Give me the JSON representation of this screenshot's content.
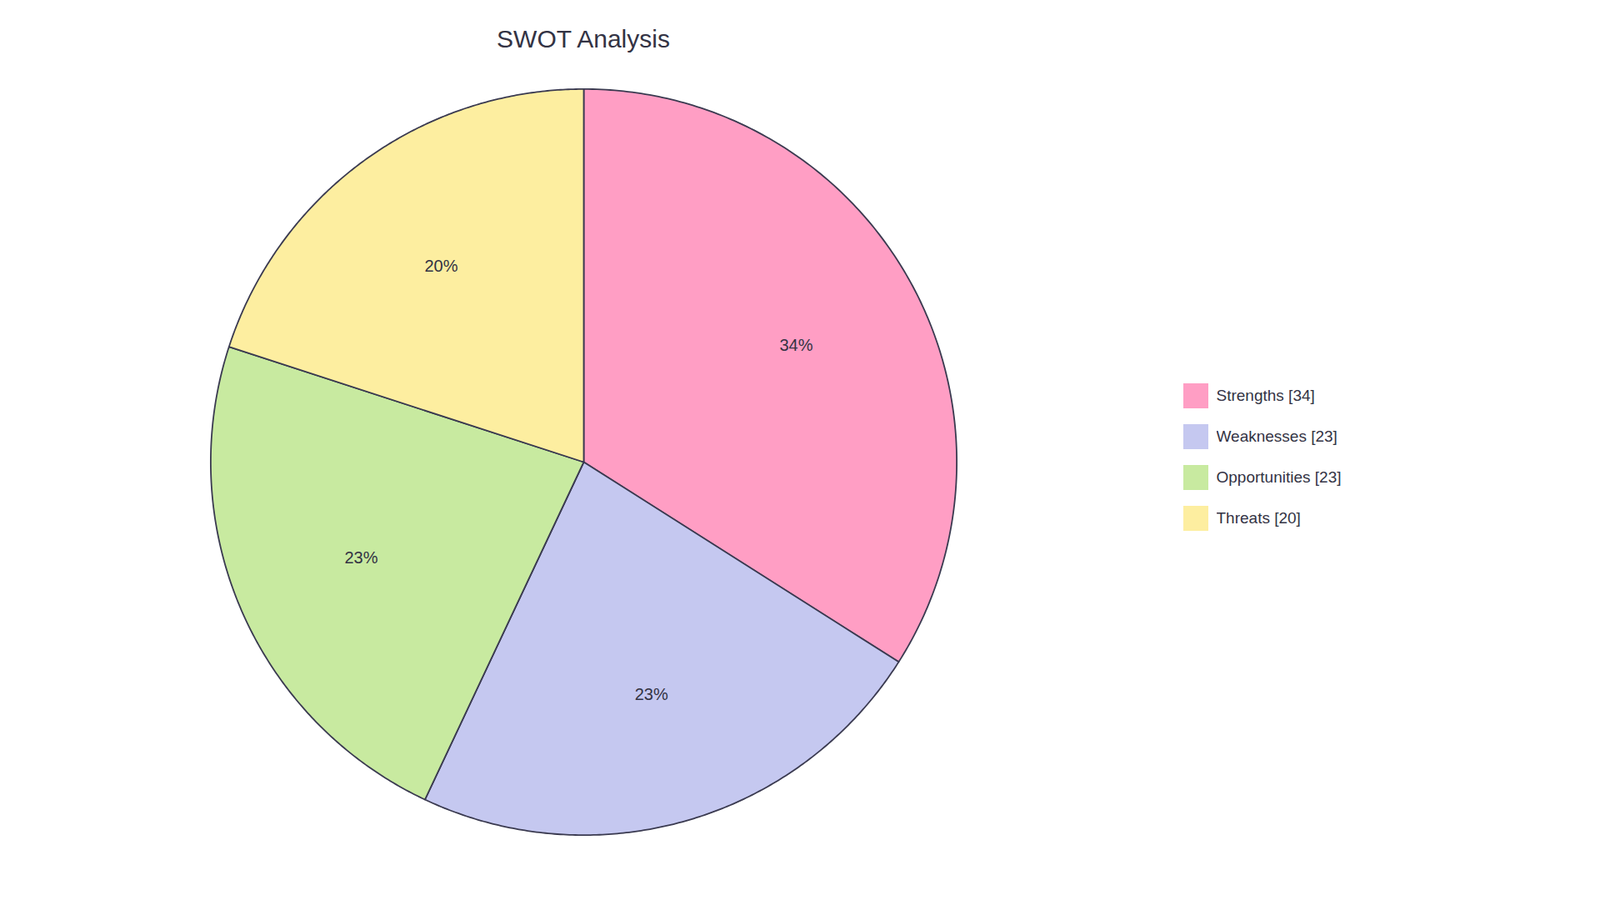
{
  "chart_data": {
    "type": "pie",
    "title": "SWOT Analysis",
    "categories": [
      "Strengths [34]",
      "Weaknesses [23]",
      "Opportunities [23]",
      "Threats [20]"
    ],
    "values": [
      34,
      23,
      23,
      20
    ],
    "value_labels": [
      "34%",
      "23%",
      "23%",
      "20%"
    ],
    "colors": [
      "#FF9EC4",
      "#C5C8F0",
      "#C8EAA0",
      "#FDEEA0"
    ],
    "data_labels": true,
    "legend": "right"
  }
}
